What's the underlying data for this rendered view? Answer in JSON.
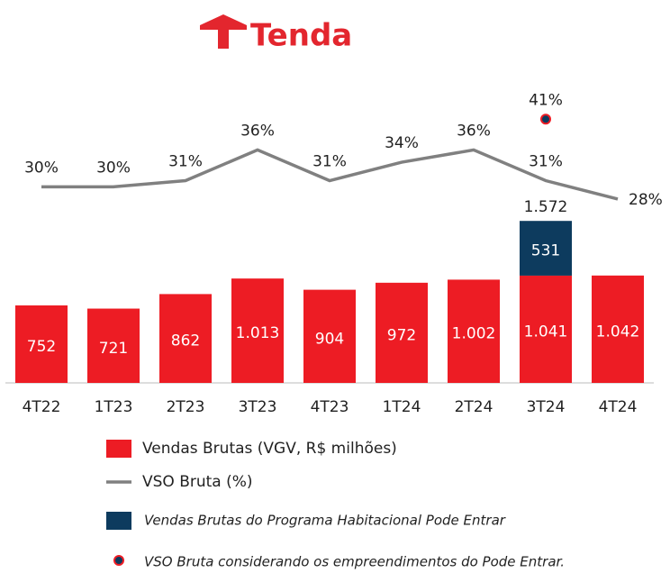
{
  "brand": "Tenda",
  "chart_data": {
    "type": "bar",
    "categories": [
      "4T22",
      "1T23",
      "2T23",
      "3T23",
      "4T23",
      "1T24",
      "2T24",
      "3T24",
      "4T24"
    ],
    "ylim": [
      0,
      1600
    ],
    "y2lim": [
      0,
      45
    ],
    "series": [
      {
        "name": "Vendas Brutas (VGV, R$ milhões)",
        "type": "bar",
        "color": "#ed1c24",
        "values": [
          752,
          721,
          862,
          1013,
          904,
          972,
          1002,
          1041,
          1042
        ],
        "value_labels": [
          "752",
          "721",
          "862",
          "1.013",
          "904",
          "972",
          "1.002",
          "1.041",
          "1.042"
        ]
      },
      {
        "name": "VSO Bruta (%)",
        "type": "line",
        "axis": "y2",
        "color": "#808080",
        "values": [
          30,
          30,
          31,
          36,
          31,
          34,
          36,
          31,
          28
        ],
        "value_labels": [
          "30%",
          "30%",
          "31%",
          "36%",
          "31%",
          "34%",
          "36%",
          "31%",
          "28%"
        ]
      },
      {
        "name": "Vendas Brutas do Programa Habitacional Pode Entrar",
        "type": "bar",
        "stacked": true,
        "color": "#0d3b5e",
        "values": [
          null,
          null,
          null,
          null,
          null,
          null,
          null,
          531,
          null
        ],
        "value_labels": [
          null,
          null,
          null,
          null,
          null,
          null,
          null,
          "531",
          null
        ],
        "total_labels": [
          null,
          null,
          null,
          null,
          null,
          null,
          null,
          "1.572",
          null
        ]
      },
      {
        "name": "VSO Bruta considerando os empreendimentos do Pode Entrar.",
        "type": "dot",
        "axis": "y2",
        "color": "#0d3b5e",
        "values": [
          null,
          null,
          null,
          null,
          null,
          null,
          null,
          41,
          null
        ],
        "value_labels": [
          null,
          null,
          null,
          null,
          null,
          null,
          null,
          "41%",
          null
        ]
      }
    ]
  }
}
